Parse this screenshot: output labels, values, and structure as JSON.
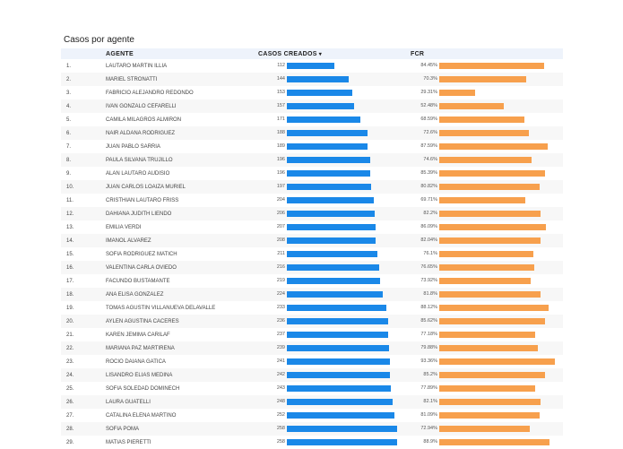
{
  "title": "Casos por agente",
  "columns": {
    "agente": "AGENTE",
    "casos": "CASOS CREADOS",
    "fcr": "FCR"
  },
  "sort_icon": "sort-descending-icon",
  "colors": {
    "casos_bar": "#1a88e8",
    "fcr_bar": "#f7a04d",
    "header_bg": "#eef3fb"
  },
  "chart_data": {
    "type": "table",
    "title": "Casos por agente",
    "columns": [
      "AGENTE",
      "CASOS CREADOS",
      "FCR"
    ],
    "rows": [
      {
        "idx": "1.",
        "agente": "LAUTARO MARTIN ILLIA",
        "casos": 112,
        "casos_label": "112",
        "fcr": 84.45,
        "fcr_label": "84.45%"
      },
      {
        "idx": "2.",
        "agente": "MARIEL STRONATTI",
        "casos": 144,
        "casos_label": "144",
        "fcr": 70.3,
        "fcr_label": "70.3%"
      },
      {
        "idx": "3.",
        "agente": "FABRICIO ALEJANDRO REDONDO",
        "casos": 153,
        "casos_label": "153",
        "fcr": 29.31,
        "fcr_label": "29.31%"
      },
      {
        "idx": "4.",
        "agente": "IVAN GONZALO CEFARELLI",
        "casos": 157,
        "casos_label": "157",
        "fcr": 52.48,
        "fcr_label": "52.48%"
      },
      {
        "idx": "5.",
        "agente": "CAMILA MILAGROS ALMIRON",
        "casos": 171,
        "casos_label": "171",
        "fcr": 68.59,
        "fcr_label": "68.59%"
      },
      {
        "idx": "6.",
        "agente": "NAIR ALDANA RODRIGUEZ",
        "casos": 188,
        "casos_label": "188",
        "fcr": 72.6,
        "fcr_label": "72.6%"
      },
      {
        "idx": "7.",
        "agente": "JUAN PABLO SARRIA",
        "casos": 189,
        "casos_label": "189",
        "fcr": 87.59,
        "fcr_label": "87.59%"
      },
      {
        "idx": "8.",
        "agente": "PAULA SILVANA TRUJILLO",
        "casos": 196,
        "casos_label": "196",
        "fcr": 74.6,
        "fcr_label": "74.6%"
      },
      {
        "idx": "9.",
        "agente": "ALAN LAUTARO AUDISIO",
        "casos": 196,
        "casos_label": "196",
        "fcr": 85.39,
        "fcr_label": "85.39%"
      },
      {
        "idx": "10.",
        "agente": "JUAN CARLOS LOAIZA MURIEL",
        "casos": 197,
        "casos_label": "197",
        "fcr": 80.82,
        "fcr_label": "80.82%"
      },
      {
        "idx": "11.",
        "agente": "CRISTHIAN LAUTARO FRISS",
        "casos": 204,
        "casos_label": "204",
        "fcr": 69.71,
        "fcr_label": "69.71%"
      },
      {
        "idx": "12.",
        "agente": "DAHIANA JUDITH LIENDO",
        "casos": 206,
        "casos_label": "206",
        "fcr": 82.2,
        "fcr_label": "82.2%"
      },
      {
        "idx": "13.",
        "agente": "EMILIA VERDI",
        "casos": 207,
        "casos_label": "207",
        "fcr": 86.09,
        "fcr_label": "86.09%"
      },
      {
        "idx": "14.",
        "agente": "IMANOL ALVAREZ",
        "casos": 208,
        "casos_label": "208",
        "fcr": 82.04,
        "fcr_label": "82.04%"
      },
      {
        "idx": "15.",
        "agente": "SOFIA RODRIGUEZ MATICH",
        "casos": 211,
        "casos_label": "211",
        "fcr": 76.1,
        "fcr_label": "76.1%"
      },
      {
        "idx": "16.",
        "agente": "VALENTINA CARLA OVIEDO",
        "casos": 216,
        "casos_label": "216",
        "fcr": 76.65,
        "fcr_label": "76.65%"
      },
      {
        "idx": "17.",
        "agente": "FACUNDO BUSTAMANTE",
        "casos": 219,
        "casos_label": "219",
        "fcr": 73.92,
        "fcr_label": "73.92%"
      },
      {
        "idx": "18.",
        "agente": "ANA ELISA GONZALEZ",
        "casos": 224,
        "casos_label": "224",
        "fcr": 81.8,
        "fcr_label": "81.8%"
      },
      {
        "idx": "19.",
        "agente": "TOMAS AGUSTIN VILLANUEVA DELAVALLE",
        "casos": 233,
        "casos_label": "233",
        "fcr": 88.12,
        "fcr_label": "88.12%"
      },
      {
        "idx": "20.",
        "agente": "AYLEN AGUSTINA CACERES",
        "casos": 236,
        "casos_label": "236",
        "fcr": 85.62,
        "fcr_label": "85.62%"
      },
      {
        "idx": "21.",
        "agente": "KAREN JEMIMA CARILAF",
        "casos": 237,
        "casos_label": "237",
        "fcr": 77.18,
        "fcr_label": "77.18%"
      },
      {
        "idx": "22.",
        "agente": "MARIANA PAZ MARTIRENA",
        "casos": 239,
        "casos_label": "239",
        "fcr": 79.88,
        "fcr_label": "79.88%"
      },
      {
        "idx": "23.",
        "agente": "ROCIO DAIANA GATICA",
        "casos": 241,
        "casos_label": "241",
        "fcr": 93.36,
        "fcr_label": "93.36%"
      },
      {
        "idx": "24.",
        "agente": "LISANDRO ELIAS MEDINA",
        "casos": 242,
        "casos_label": "242",
        "fcr": 85.2,
        "fcr_label": "85.2%"
      },
      {
        "idx": "25.",
        "agente": "SOFIA SOLEDAD DOMINECH",
        "casos": 243,
        "casos_label": "243",
        "fcr": 77.89,
        "fcr_label": "77.89%"
      },
      {
        "idx": "26.",
        "agente": "LAURA GUATELLI",
        "casos": 248,
        "casos_label": "248",
        "fcr": 82.1,
        "fcr_label": "82.1%"
      },
      {
        "idx": "27.",
        "agente": "CATALINA ELENA MARTINO",
        "casos": 252,
        "casos_label": "252",
        "fcr": 81.09,
        "fcr_label": "81.09%"
      },
      {
        "idx": "28.",
        "agente": "SOFIA POMA",
        "casos": 258,
        "casos_label": "258",
        "fcr": 72.94,
        "fcr_label": "72.94%"
      },
      {
        "idx": "29.",
        "agente": "MATIAS PIERETTI",
        "casos": 258,
        "casos_label": "258",
        "fcr": 88.9,
        "fcr_label": "88.9%"
      }
    ]
  }
}
